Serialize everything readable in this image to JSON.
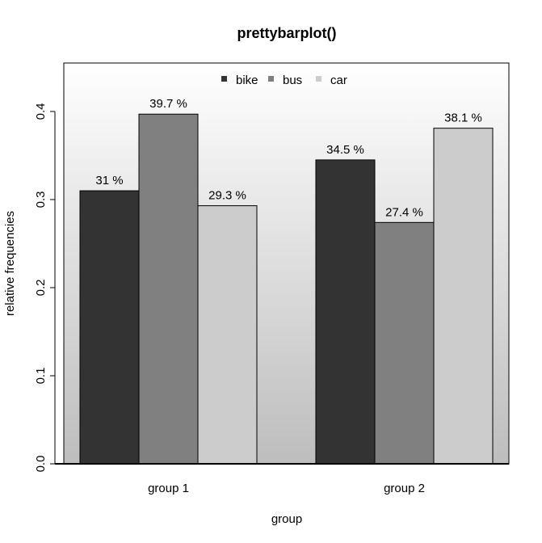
{
  "chart_data": {
    "type": "bar",
    "title": "prettybarplot()",
    "xlabel": "group",
    "ylabel": "relative frequencies",
    "categories": [
      "group 1",
      "group 2"
    ],
    "series": [
      {
        "name": "bike",
        "values": [
          0.31,
          0.345
        ],
        "labels": [
          "31 %",
          "34.5 %"
        ],
        "color": "#333333"
      },
      {
        "name": "bus",
        "values": [
          0.397,
          0.274
        ],
        "labels": [
          "39.7 %",
          "27.4 %"
        ],
        "color": "#808080"
      },
      {
        "name": "car",
        "values": [
          0.293,
          0.381
        ],
        "labels": [
          "29.3 %",
          "38.1 %"
        ],
        "color": "#cccccc"
      }
    ],
    "ylim": [
      0,
      0.455
    ],
    "yticks": [
      0.0,
      0.1,
      0.2,
      0.3,
      0.4
    ],
    "ytick_labels": [
      "0.0",
      "0.1",
      "0.2",
      "0.3",
      "0.4"
    ],
    "legend_position": "top-center",
    "grid": false,
    "background": "vertical gradient, white at top to grey at bottom"
  }
}
